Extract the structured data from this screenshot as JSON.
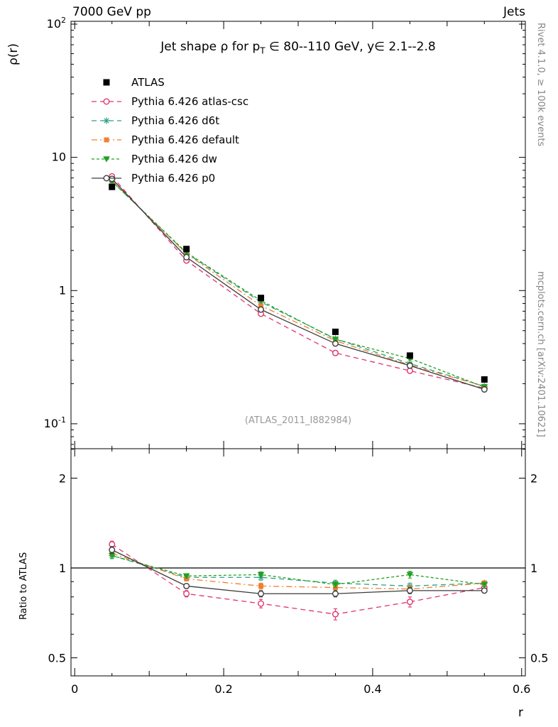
{
  "header": {
    "left": "7000 GeV pp",
    "right": "Jets"
  },
  "side_notes": {
    "top_right": "Rivet 4.1.0, ≥ 100k events",
    "bottom_right": "mcplots.cern.ch [arXiv:2401.10621]"
  },
  "watermark": "(ATLAS_2011_I882984)",
  "chart_data": {
    "type": "line",
    "title": "Jet shape ρ for pT ∈ 80--110 GeV, y∈ 2.1--2.8",
    "title_parts": {
      "pre": "Jet shape ρ for p",
      "sub": "T",
      "post": " ∈ 80--110 GeV, y∈ 2.1--2.8"
    },
    "xlabel": "r",
    "ylabel_main": "ρ(r)",
    "ylabel_ratio": "Ratio to ATLAS",
    "yscale_main": "log",
    "yscale_ratio": "log",
    "grid": false,
    "legend_position": "top-left-inside",
    "x": [
      0.05,
      0.15,
      0.25,
      0.35,
      0.45,
      0.55
    ],
    "xlim": [
      -0.005,
      0.605
    ],
    "ylim_main": [
      0.065,
      105
    ],
    "ylim_ratio": [
      0.435,
      2.51
    ],
    "x_ticks": [
      {
        "v": 0,
        "label": "0"
      },
      {
        "v": 0.2,
        "label": "0.2"
      },
      {
        "v": 0.4,
        "label": "0.4"
      },
      {
        "v": 0.6,
        "label": "0.6"
      }
    ],
    "y_ticks_main": [
      {
        "v": 100,
        "base": "10",
        "exp": "2"
      },
      {
        "v": 10,
        "base": "10",
        "exp": ""
      },
      {
        "v": 1,
        "base": "1",
        "exp": ""
      },
      {
        "v": 0.1,
        "base": "10",
        "exp": "-1"
      }
    ],
    "y_ticks_ratio": [
      {
        "v": 2,
        "label": "2"
      },
      {
        "v": 1,
        "label": "1"
      },
      {
        "v": 0.5,
        "label": "0.5"
      }
    ],
    "ratio_minor_ticks": [
      0.6,
      0.7,
      0.8,
      0.9,
      2.5
    ],
    "series": [
      {
        "name": "ATLAS",
        "color": "#000000",
        "marker": "square",
        "line": "none",
        "is_reference": true,
        "values": [
          6.0,
          2.05,
          0.88,
          0.49,
          0.325,
          0.215
        ]
      },
      {
        "name": "Pythia 6.426 atlas-csc",
        "color": "#e0356b",
        "marker": "circle-open",
        "line": "dash",
        "values": [
          7.2,
          1.68,
          0.67,
          0.34,
          0.25,
          0.185
        ],
        "ratio": [
          1.2,
          0.82,
          0.76,
          0.7,
          0.77,
          0.86
        ],
        "ratio_err": [
          0.03,
          0.02,
          0.025,
          0.03,
          0.03,
          0.02
        ]
      },
      {
        "name": "Pythia 6.426 d6t",
        "color": "#2aa183",
        "marker": "star",
        "line": "dash",
        "values": [
          6.6,
          1.91,
          0.82,
          0.435,
          0.283,
          0.191
        ],
        "ratio": [
          1.1,
          0.93,
          0.93,
          0.89,
          0.87,
          0.89
        ],
        "ratio_err": [
          0.025,
          0.015,
          0.02,
          0.02,
          0.02,
          0.015
        ]
      },
      {
        "name": "Pythia 6.426 default",
        "color": "#f08030",
        "marker": "square-s",
        "line": "dashdot",
        "values": [
          6.7,
          1.89,
          0.77,
          0.42,
          0.276,
          0.191
        ],
        "ratio": [
          1.12,
          0.92,
          0.87,
          0.86,
          0.85,
          0.89
        ],
        "ratio_err": [
          0.025,
          0.015,
          0.02,
          0.025,
          0.025,
          0.015
        ]
      },
      {
        "name": "Pythia 6.426 dw",
        "color": "#22a022",
        "marker": "tri-down",
        "line": "dash2",
        "values": [
          6.6,
          1.93,
          0.84,
          0.43,
          0.309,
          0.189
        ],
        "ratio": [
          1.1,
          0.94,
          0.95,
          0.88,
          0.95,
          0.88
        ],
        "ratio_err": [
          0.025,
          0.015,
          0.02,
          0.02,
          0.025,
          0.015
        ]
      },
      {
        "name": "Pythia 6.426 p0",
        "color": "#3c3c3c",
        "marker": "circle-open",
        "line": "solid",
        "values": [
          6.9,
          1.78,
          0.72,
          0.4,
          0.273,
          0.181
        ],
        "ratio": [
          1.15,
          0.87,
          0.82,
          0.82,
          0.84,
          0.84
        ],
        "ratio_err": [
          0.03,
          0.015,
          0.02,
          0.02,
          0.02,
          0.015
        ]
      }
    ]
  }
}
